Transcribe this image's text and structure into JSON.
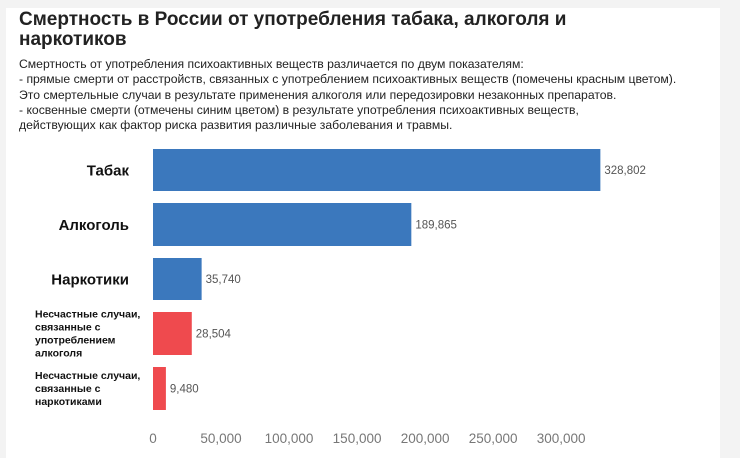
{
  "chart_data": {
    "type": "bar",
    "orientation": "horizontal",
    "title": "Смертность в России от употребления табака, алкоголя и наркотиков",
    "description": [
      "Смертность от употребления психоактивных веществ различается по двум показателям:",
      "- прямые смерти от расстройств, связанных с употреблением психоактивных веществ (помечены красным цветом).",
      "Это смертельные случаи в результате применения алкоголя или передозировки незаконных препаратов.",
      "- косвенные смерти (отмечены синим цветом) в результате употребления психоактивных веществ,",
      "действующих как фактор риска развития различные заболевания и травмы."
    ],
    "categories": [
      "Табак",
      "Алкоголь",
      "Наркотики",
      "Несчастные случаи, связанные с употреблением алкоголя",
      "Несчастные случаи, связанные с наркотиками"
    ],
    "category_lines": [
      [
        "Табак"
      ],
      [
        "Алкоголь"
      ],
      [
        "Наркотики"
      ],
      [
        "Несчастные случаи,",
        "связанные с",
        "употреблением",
        "алкоголя"
      ],
      [
        "Несчастные случаи,",
        "связанные с",
        "наркотиками"
      ]
    ],
    "values": [
      328802,
      189865,
      35740,
      28504,
      9480
    ],
    "value_labels": [
      "328,802",
      "189,865",
      "35,740",
      "28,504",
      "9,480"
    ],
    "bar_colors": [
      "#3b78bd",
      "#3b78bd",
      "#3b78bd",
      "#ef4a4e",
      "#ef4a4e"
    ],
    "xlim": [
      0,
      330000
    ],
    "xticks": [
      0,
      50000,
      100000,
      150000,
      200000,
      250000,
      300000
    ],
    "xtick_labels": [
      "0",
      "50,000",
      "100,000",
      "150,000",
      "200,000",
      "250,000",
      "300,000"
    ],
    "xlabel": "",
    "ylabel": "",
    "grid": false,
    "legend": "none"
  }
}
